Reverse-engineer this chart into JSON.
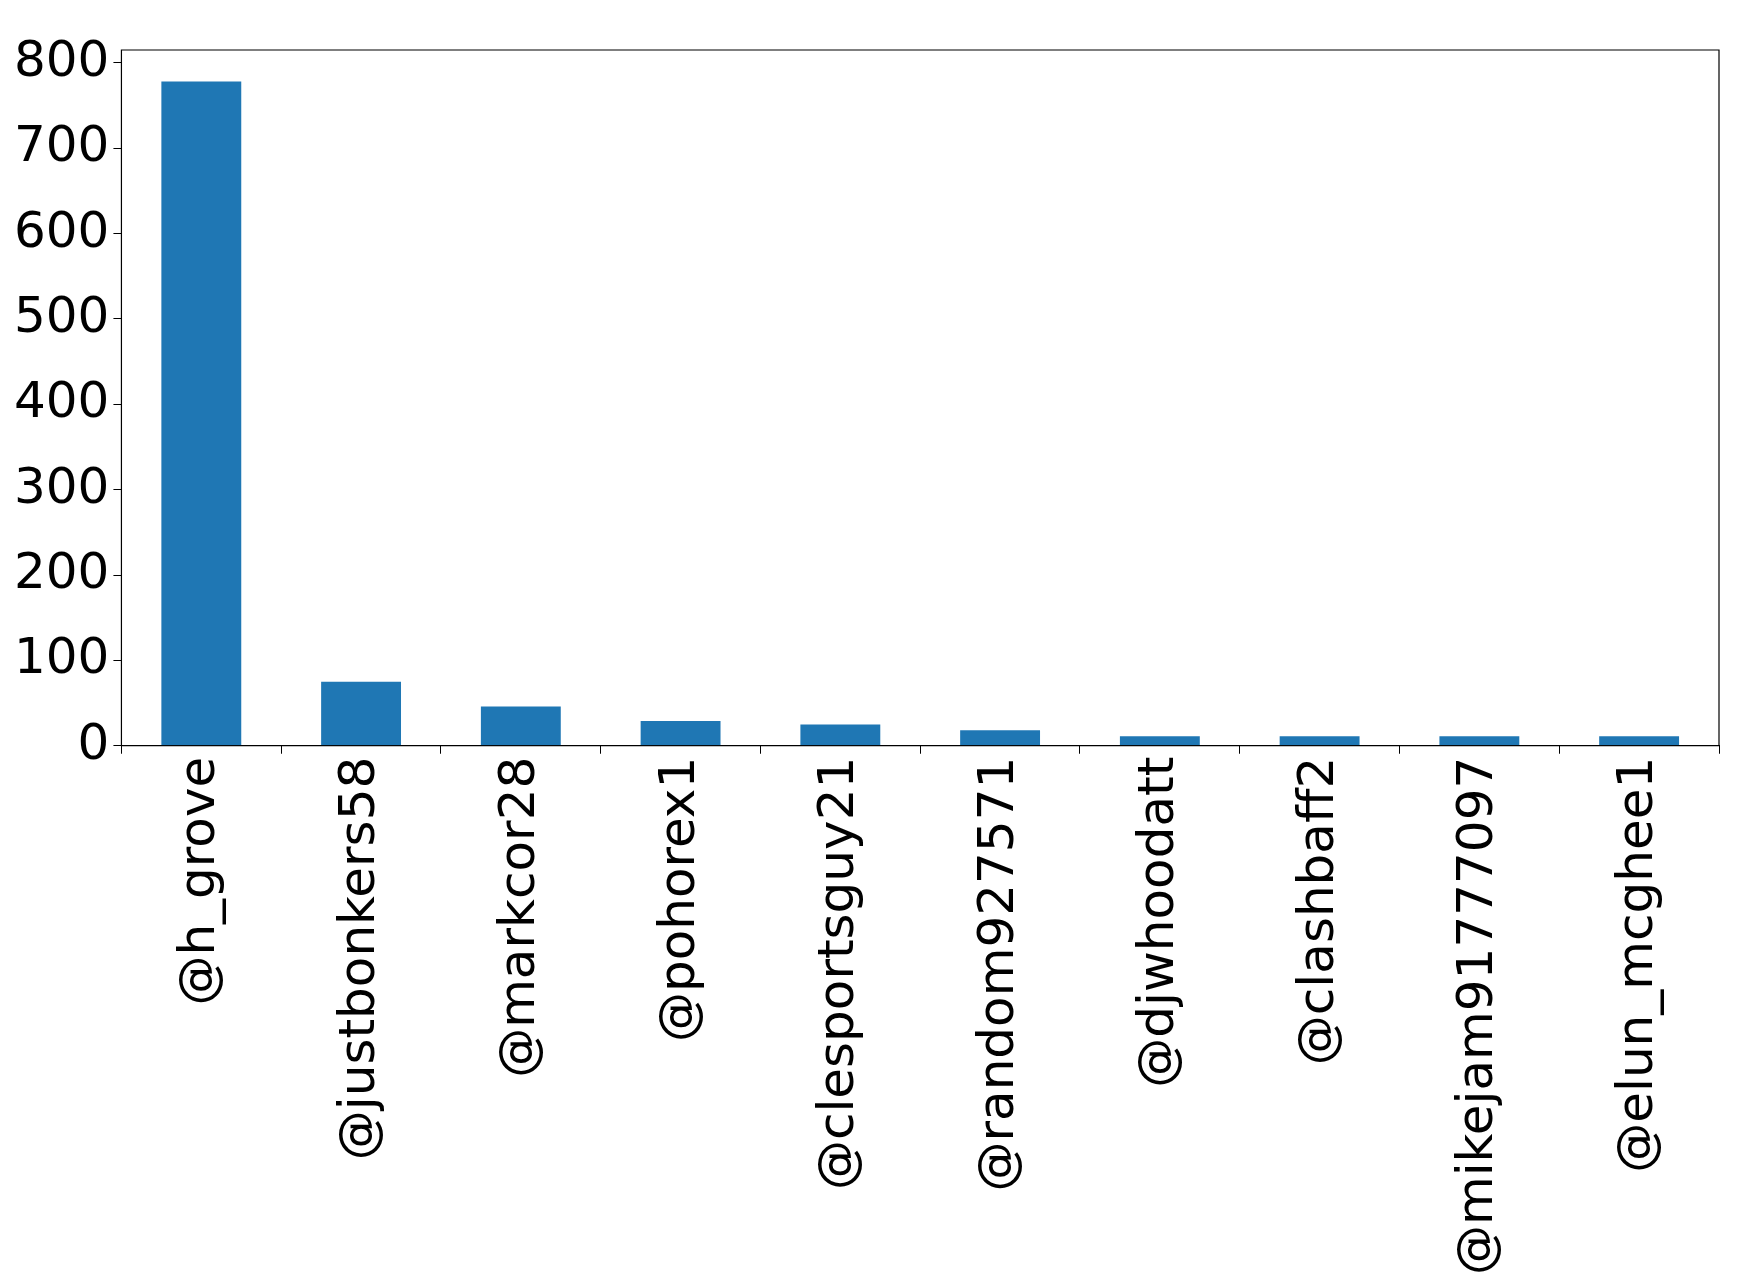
{
  "chart_data": {
    "type": "bar",
    "categories": [
      "@h_grove",
      "@justbonkers58",
      "@markcor28",
      "@pohorex1",
      "@clesportsguy21",
      "@random927571",
      "@djwhoodatt",
      "@clashbaff2",
      "@mikejam91777097",
      "@elun_mcghee1"
    ],
    "values": [
      778,
      75,
      46,
      29,
      25,
      18,
      11,
      11,
      11,
      11
    ],
    "color": "#1f77b4",
    "ylim": [
      0,
      815
    ],
    "yticks": [
      0,
      100,
      200,
      300,
      400,
      500,
      600,
      700,
      800
    ],
    "grid": false,
    "legend": false
  }
}
